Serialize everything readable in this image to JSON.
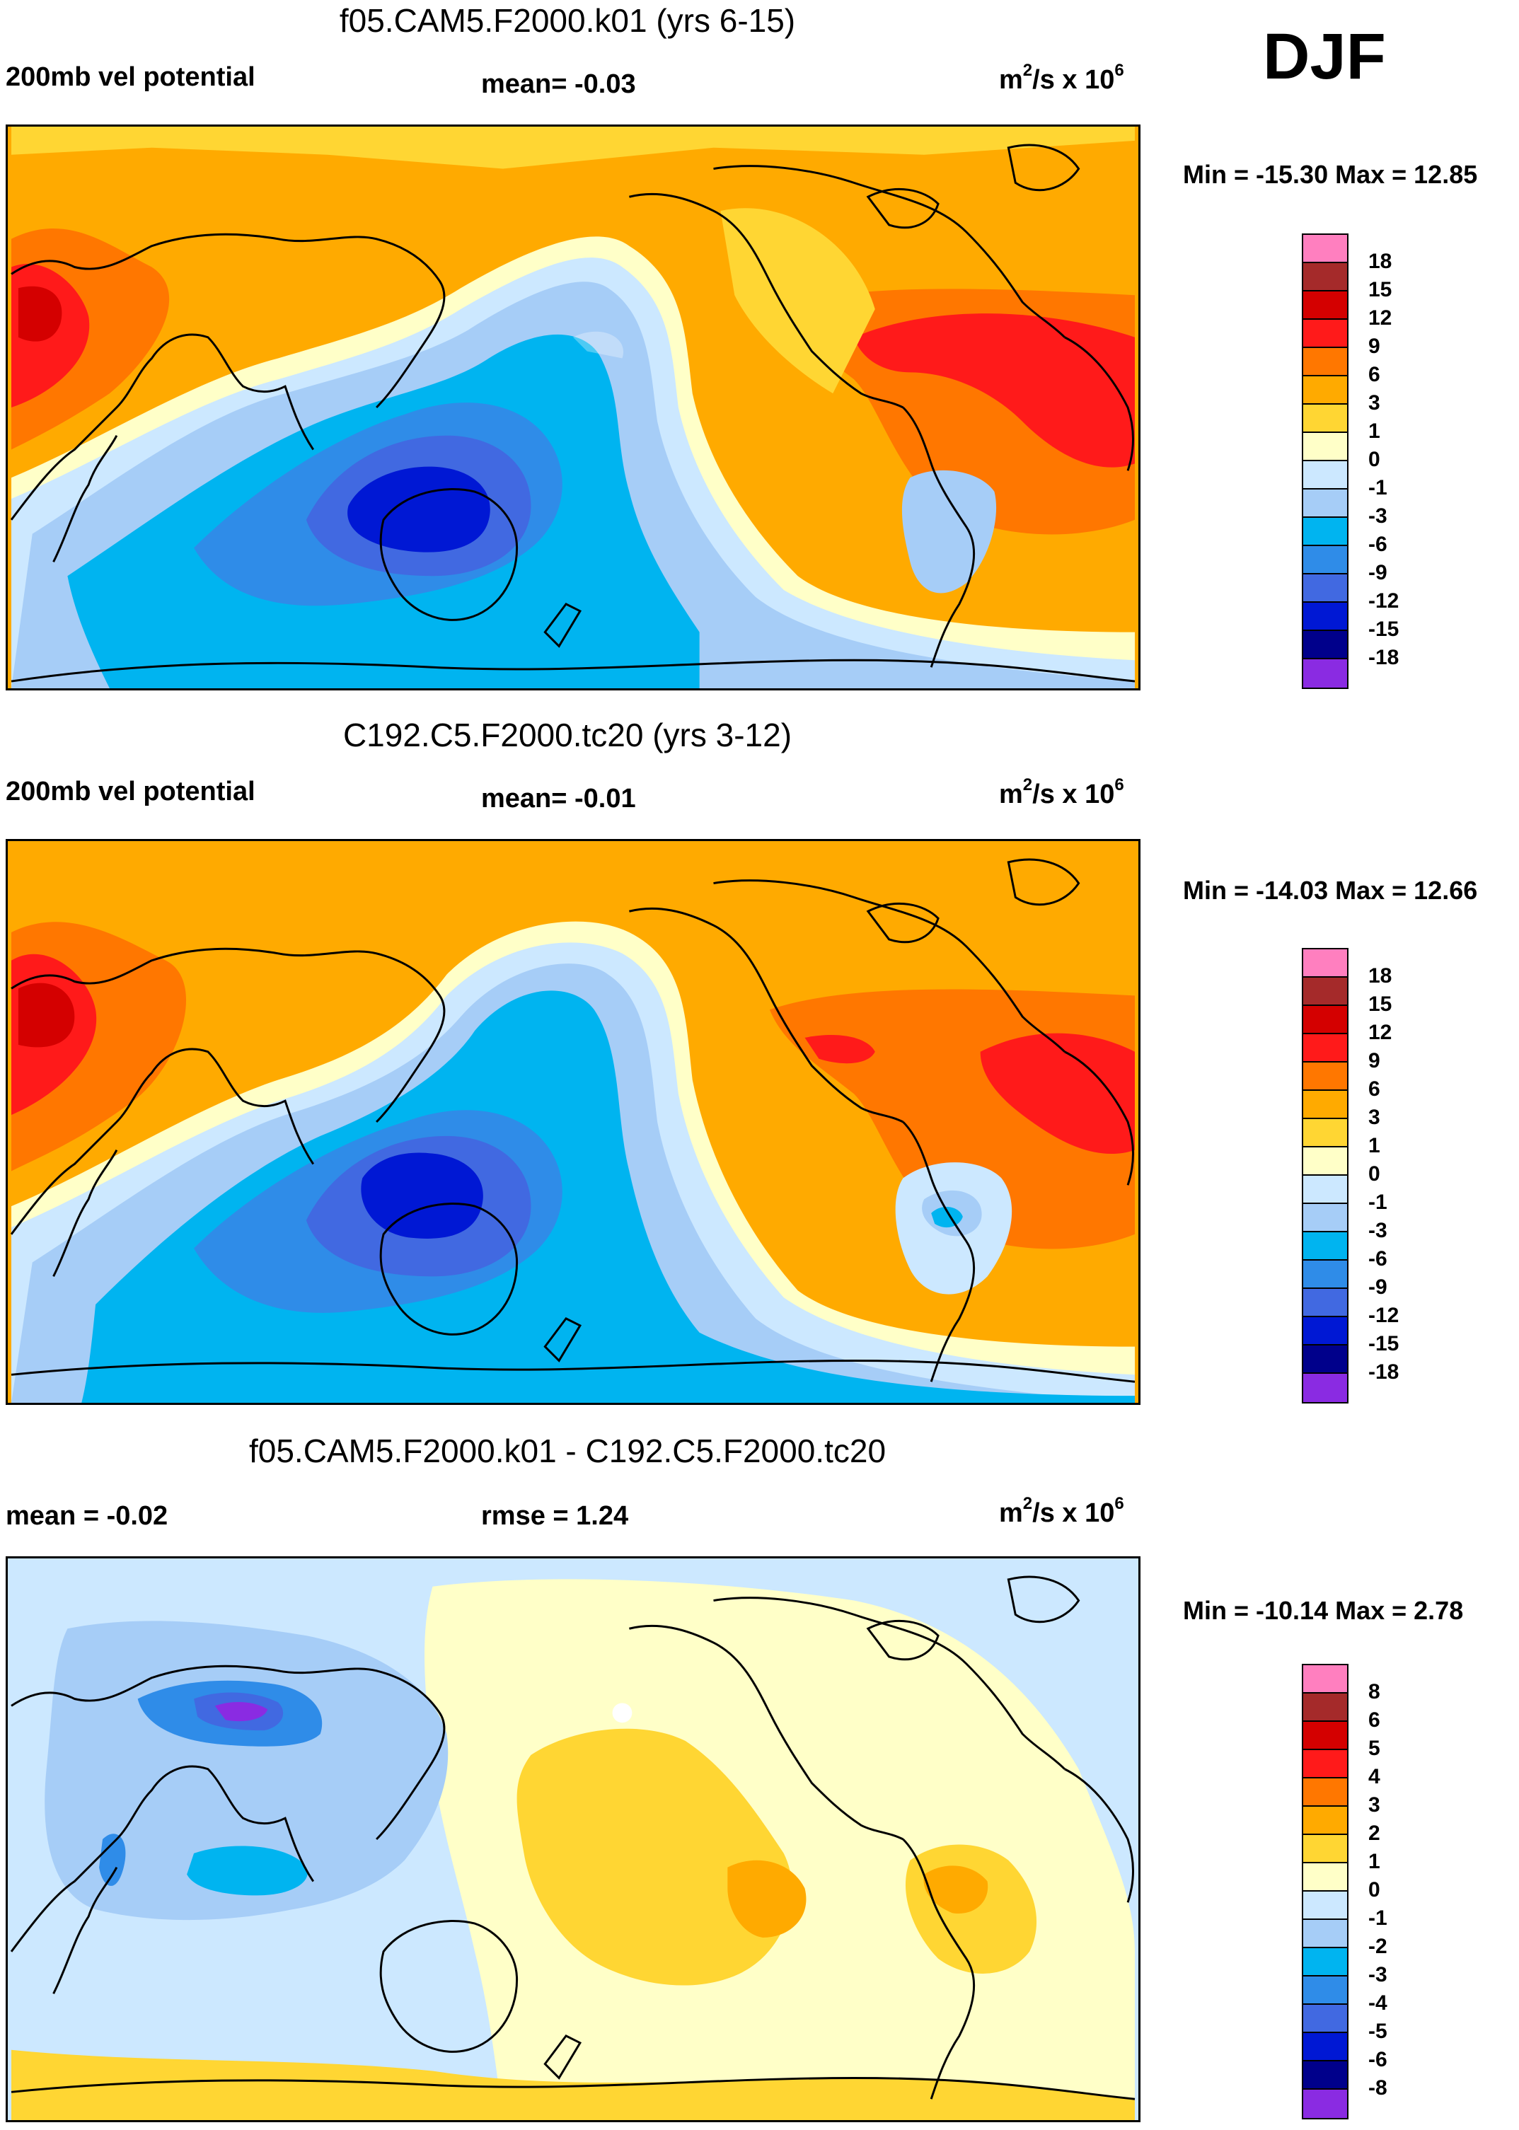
{
  "season": "DJF",
  "panels": [
    {
      "title": "f05.CAM5.F2000.k01 (yrs 6-15)",
      "left_label": "200mb vel potential",
      "center_label": "mean=  -0.03",
      "units_base": "m",
      "units_exp1": "2",
      "units_mid": "/s x 10",
      "units_exp2": "6",
      "minmax": "Min = -15.30 Max =  12.85",
      "colorbar": {
        "labels": [
          "18",
          "15",
          "12",
          "9",
          "6",
          "3",
          "1",
          "0",
          "-1",
          "-3",
          "-6",
          "-9",
          "-12",
          "-15",
          "-18"
        ],
        "colors": [
          "#ff7fbf",
          "#a52a2a",
          "#d40000",
          "#ff1a1a",
          "#ff7700",
          "#ffaa00",
          "#ffd633",
          "#ffffc8",
          "#cce8ff",
          "#a6cdf7",
          "#00b4f0",
          "#2f8ce8",
          "#4169e1",
          "#0018d4",
          "#00008b",
          "#8a2be2"
        ]
      }
    },
    {
      "title": "C192.C5.F2000.tc20 (yrs 3-12)",
      "left_label": "200mb vel potential",
      "center_label": "mean=  -0.01",
      "units_base": "m",
      "units_exp1": "2",
      "units_mid": "/s x 10",
      "units_exp2": "6",
      "minmax": "Min = -14.03 Max =  12.66",
      "colorbar": {
        "labels": [
          "18",
          "15",
          "12",
          "9",
          "6",
          "3",
          "1",
          "0",
          "-1",
          "-3",
          "-6",
          "-9",
          "-12",
          "-15",
          "-18"
        ],
        "colors": [
          "#ff7fbf",
          "#a52a2a",
          "#d40000",
          "#ff1a1a",
          "#ff7700",
          "#ffaa00",
          "#ffd633",
          "#ffffc8",
          "#cce8ff",
          "#a6cdf7",
          "#00b4f0",
          "#2f8ce8",
          "#4169e1",
          "#0018d4",
          "#00008b",
          "#8a2be2"
        ]
      }
    },
    {
      "title": "f05.CAM5.F2000.k01 - C192.C5.F2000.tc20",
      "left_label": "mean =  -0.02",
      "center_label": "rmse =   1.24",
      "units_base": "m",
      "units_exp1": "2",
      "units_mid": "/s x 10",
      "units_exp2": "6",
      "minmax": "Min = -10.14 Max =   2.78",
      "colorbar": {
        "labels": [
          "8",
          "6",
          "5",
          "4",
          "3",
          "2",
          "1",
          "0",
          "-1",
          "-2",
          "-3",
          "-4",
          "-5",
          "-6",
          "-8"
        ],
        "colors": [
          "#ff7fbf",
          "#a52a2a",
          "#d40000",
          "#ff1a1a",
          "#ff7700",
          "#ffaa00",
          "#ffd633",
          "#ffffc8",
          "#cce8ff",
          "#a6cdf7",
          "#00b4f0",
          "#2f8ce8",
          "#4169e1",
          "#0018d4",
          "#00008b",
          "#8a2be2"
        ]
      }
    }
  ]
}
